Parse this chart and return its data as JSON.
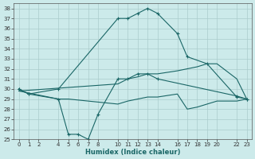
{
  "xlabel": "Humidex (Indice chaleur)",
  "bg_color": "#cceaea",
  "grid_color": "#aacccc",
  "line_color": "#1a6666",
  "ylim": [
    25,
    38.5
  ],
  "xlim": [
    -0.5,
    23.5
  ],
  "yticks": [
    25,
    26,
    27,
    28,
    29,
    30,
    31,
    32,
    33,
    34,
    35,
    36,
    37,
    38
  ],
  "xticks": [
    0,
    1,
    2,
    4,
    5,
    6,
    7,
    8,
    10,
    11,
    12,
    13,
    14,
    16,
    17,
    18,
    19,
    20,
    22,
    23
  ],
  "line1": {
    "x": [
      0,
      1,
      4,
      10,
      11,
      12,
      13,
      14,
      16,
      17,
      19,
      22,
      23
    ],
    "y": [
      30,
      29.5,
      30,
      37,
      37,
      37.5,
      38,
      37.5,
      35.5,
      33.2,
      32.5,
      29.2,
      29
    ]
  },
  "line2": {
    "x": [
      0,
      1,
      4,
      5,
      6,
      7,
      8,
      10,
      11,
      12,
      13,
      14,
      22,
      23
    ],
    "y": [
      30,
      29.5,
      29,
      25.5,
      25.5,
      25.0,
      27.5,
      31,
      31,
      31.5,
      31.5,
      31,
      29.3,
      29
    ]
  },
  "line3": {
    "x": [
      0,
      10,
      11,
      12,
      13,
      14,
      16,
      17,
      18,
      19,
      20,
      22,
      23
    ],
    "y": [
      29.8,
      30.5,
      31,
      31.2,
      31.5,
      31.5,
      31.8,
      32,
      32.2,
      32.5,
      32.5,
      31,
      29
    ]
  },
  "line4": {
    "x": [
      0,
      4,
      5,
      10,
      11,
      12,
      13,
      14,
      16,
      17,
      18,
      19,
      20,
      22,
      23
    ],
    "y": [
      29.8,
      29,
      29,
      28.5,
      28.8,
      29,
      29.2,
      29.2,
      29.5,
      28,
      28.2,
      28.5,
      28.8,
      28.8,
      29
    ]
  }
}
